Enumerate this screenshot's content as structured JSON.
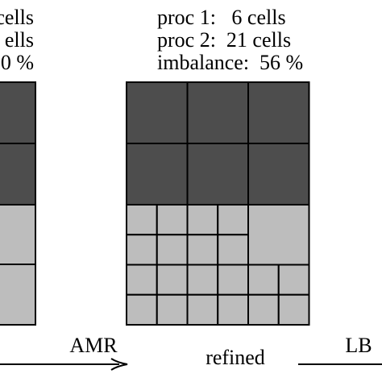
{
  "left_panel": {
    "lines": [
      "cells",
      "ells",
      "0 %"
    ]
  },
  "right_panel": {
    "lines": [
      "proc 1:   6 cells",
      "proc 2:  21 cells",
      "imbalance:  56 %"
    ]
  },
  "arrows": {
    "amr": "AMR",
    "lb": "LB"
  },
  "caption": "refined"
}
